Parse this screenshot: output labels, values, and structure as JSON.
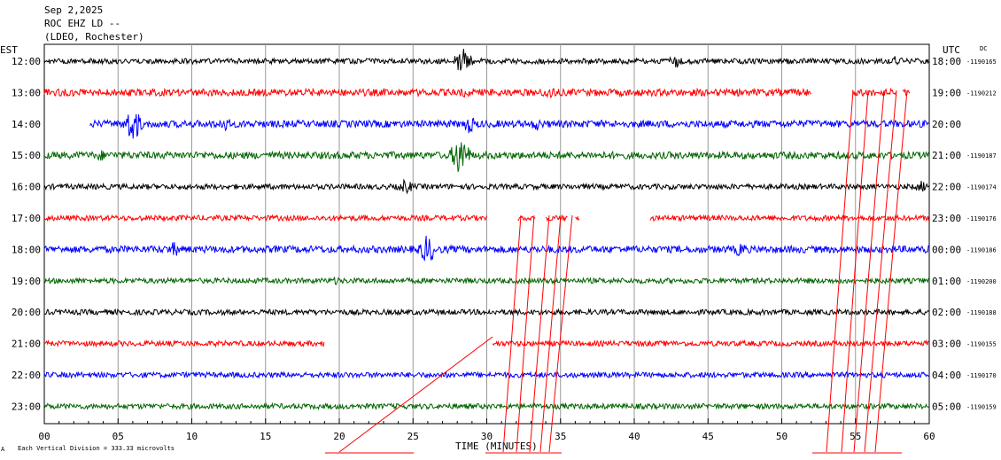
{
  "header": {
    "date": "Sep 2,2025",
    "station": "ROC EHZ LD --",
    "network": "(LDEO, Rochester)"
  },
  "labels": {
    "left_zone": "EST",
    "right_zone": "UTC",
    "dc": "DC",
    "xlabel": "TIME (MINUTES)",
    "scale_note": "Each Vertical Division =  333.33 microvolts"
  },
  "chart_data": {
    "type": "line",
    "title": "",
    "xlabel": "TIME (MINUTES)",
    "ylabel": "",
    "xlim": [
      0,
      60
    ],
    "x_ticks": [
      "00",
      "05",
      "10",
      "15",
      "20",
      "25",
      "30",
      "35",
      "40",
      "45",
      "50",
      "55",
      "60"
    ],
    "grid": true,
    "vertical_division_microvolts": 333.33,
    "colors": [
      "#000000",
      "#ff0000",
      "#0000ff",
      "#006400"
    ],
    "rows": [
      {
        "est": "12:00",
        "utc": "18:00",
        "dc": "-1190165",
        "color": "#000000",
        "segments": [
          [
            0,
            60
          ]
        ],
        "amp": 3,
        "events": [
          {
            "x": 28.4,
            "amp": 18
          },
          {
            "x": 42.7,
            "amp": 9
          },
          {
            "x": 57.8,
            "amp": 7
          }
        ]
      },
      {
        "est": "13:00",
        "utc": "19:00",
        "dc": "-1190212",
        "color": "#ff0000",
        "segments": [
          [
            0,
            52
          ],
          [
            54.8,
            57.8
          ],
          [
            58.2,
            58.7
          ]
        ],
        "amp": 4,
        "events": [
          {
            "x": 34.3,
            "amp": 9
          },
          {
            "x": 28.5,
            "amp": 6
          }
        ]
      },
      {
        "est": "14:00",
        "utc": "20:00",
        "dc": "",
        "color": "#0000ff",
        "segments": [
          [
            3.1,
            60
          ]
        ],
        "amp": 4,
        "events": [
          {
            "x": 6.0,
            "amp": 22
          },
          {
            "x": 12.2,
            "amp": 9
          },
          {
            "x": 28.8,
            "amp": 11
          },
          {
            "x": 33.4,
            "amp": 8
          }
        ]
      },
      {
        "est": "15:00",
        "utc": "21:00",
        "dc": "-1190187",
        "color": "#006400",
        "segments": [
          [
            0,
            60
          ]
        ],
        "amp": 4,
        "events": [
          {
            "x": 28.2,
            "amp": 26
          },
          {
            "x": 3.8,
            "amp": 7
          }
        ]
      },
      {
        "est": "16:00",
        "utc": "22:00",
        "dc": "-1190174",
        "color": "#000000",
        "segments": [
          [
            0,
            60
          ]
        ],
        "amp": 3,
        "events": [
          {
            "x": 24.5,
            "amp": 9
          },
          {
            "x": 59.5,
            "amp": 7
          }
        ]
      },
      {
        "est": "17:00",
        "utc": "23:00",
        "dc": "-1190176",
        "color": "#ff0000",
        "segments": [
          [
            0,
            30
          ],
          [
            32.1,
            33.3
          ],
          [
            34,
            35.5
          ],
          [
            36,
            36.3
          ],
          [
            41.1,
            60
          ]
        ],
        "amp": 3,
        "events": []
      },
      {
        "est": "18:00",
        "utc": "00:00",
        "dc": "-1190186",
        "color": "#0000ff",
        "segments": [
          [
            0,
            60
          ]
        ],
        "amp": 4,
        "events": [
          {
            "x": 26.0,
            "amp": 18
          },
          {
            "x": 8.8,
            "amp": 9
          },
          {
            "x": 47.2,
            "amp": 9
          }
        ]
      },
      {
        "est": "19:00",
        "utc": "01:00",
        "dc": "-1190200",
        "color": "#006400",
        "segments": [
          [
            0,
            60
          ]
        ],
        "amp": 3,
        "events": [
          {
            "x": 19.8,
            "amp": 5
          }
        ]
      },
      {
        "est": "20:00",
        "utc": "02:00",
        "dc": "-1190188",
        "color": "#000000",
        "segments": [
          [
            0,
            60
          ]
        ],
        "amp": 3,
        "events": []
      },
      {
        "est": "21:00",
        "utc": "03:00",
        "dc": "-1190155",
        "color": "#ff0000",
        "segments": [
          [
            0,
            19
          ],
          [
            30.4,
            60
          ]
        ],
        "amp": 3,
        "events": []
      },
      {
        "est": "22:00",
        "utc": "04:00",
        "dc": "-1190170",
        "color": "#0000ff",
        "segments": [
          [
            0,
            60
          ]
        ],
        "amp": 3,
        "events": [
          {
            "x": 27.5,
            "amp": 4
          }
        ]
      },
      {
        "est": "23:00",
        "utc": "05:00",
        "dc": "-1190159",
        "color": "#006400",
        "segments": [
          [
            0,
            60
          ]
        ],
        "amp": 3,
        "events": []
      }
    ]
  }
}
